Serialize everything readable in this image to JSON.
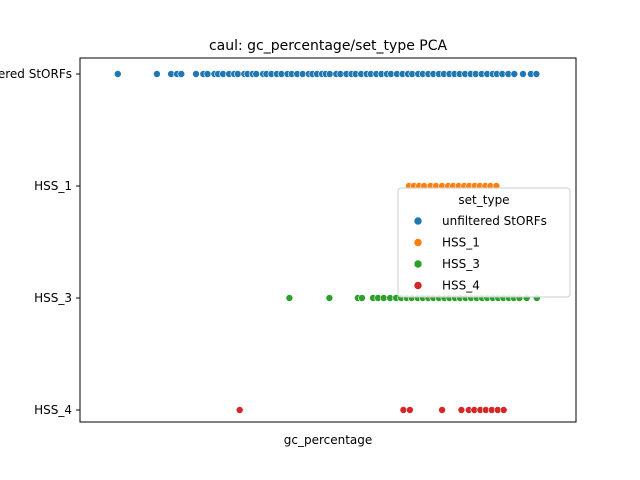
{
  "chart_data": {
    "type": "scatter",
    "title": "caul: gc_percentage/set_type PCA",
    "xlabel": "gc_percentage",
    "ylabel": "",
    "categories": [
      "unfiltered StORFs",
      "HSS_1",
      "HSS_3",
      "HSS_4"
    ],
    "xlim": [
      0,
      100
    ],
    "legend": {
      "title": "set_type",
      "placement": "center-right"
    },
    "series": [
      {
        "name": "unfiltered StORFs",
        "color": "#1f77b4",
        "x": [
          4.3,
          12.8,
          15.9,
          17.2,
          18.1,
          21.3,
          22.9,
          23.8,
          25.3,
          26.1,
          27.2,
          28.5,
          29.6,
          30.4,
          31.8,
          32.5,
          33.6,
          34.4,
          35.9,
          36.6,
          37.7,
          38.9,
          39.9,
          41.2,
          42.1,
          43.3,
          44.5,
          45.8,
          46.6,
          47.6,
          48.7,
          49.5,
          50.4,
          51.8,
          52.7,
          54.0,
          55.1,
          56.0,
          57.2,
          58.4,
          59.3,
          60.5,
          61.6,
          62.8,
          63.7,
          65.0,
          66.2,
          67.4,
          68.3,
          69.6,
          70.6,
          71.8,
          72.9,
          74.1,
          75.2,
          76.4,
          77.5,
          78.6,
          79.8,
          81.0,
          82.1,
          83.4,
          84.6,
          85.8,
          86.7,
          87.9,
          89.2,
          90.5,
          92.4,
          94.1,
          95.3
        ]
      },
      {
        "name": "HSS_1",
        "color": "#ff7f0e",
        "x": [
          67.6,
          68.7,
          69.8,
          70.9,
          72.3,
          73.5,
          74.8,
          76.1,
          77.2,
          78.4,
          79.6,
          80.7,
          81.9,
          83.0,
          84.2,
          85.3,
          86.6
        ]
      },
      {
        "name": "HSS_3",
        "color": "#2ca02c",
        "x": [
          41.6,
          50.3,
          56.5,
          57.4,
          59.8,
          60.9,
          62.1,
          63.5,
          64.8,
          65.9,
          67.1,
          68.2,
          69.5,
          70.6,
          71.8,
          72.9,
          74.1,
          75.3,
          76.4,
          77.6,
          78.7,
          79.9,
          81.1,
          82.3,
          83.5,
          84.6,
          85.8,
          87.0,
          88.1,
          89.3,
          90.4,
          91.6,
          93.2,
          95.4
        ]
      },
      {
        "name": "HSS_4",
        "color": "#d62728",
        "x": [
          30.8,
          66.4,
          67.8,
          74.8,
          79.0,
          80.6,
          81.8,
          83.1,
          84.3,
          85.6,
          86.9,
          88.2
        ]
      }
    ]
  }
}
